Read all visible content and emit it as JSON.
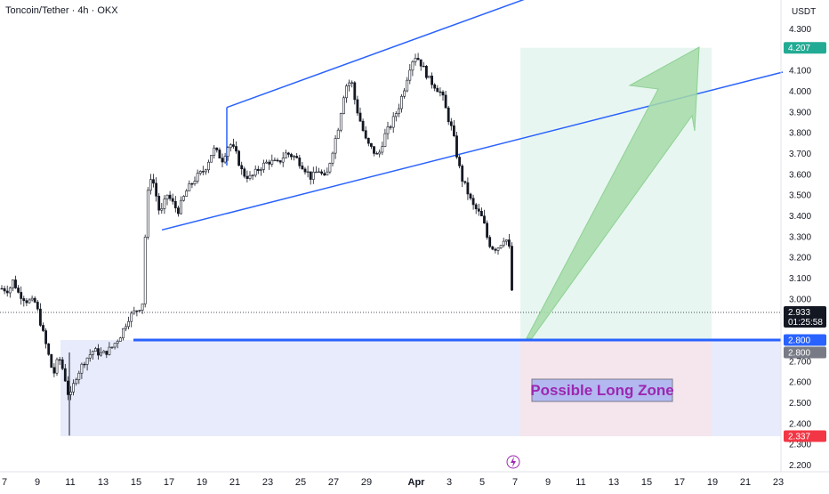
{
  "chart_data": {
    "type": "candlestick",
    "title": "Toncoin/Tether · 4h · OKX",
    "currency": "USDT",
    "y_range": [
      2.18,
      4.55
    ],
    "y_ticks": [
      "4.300",
      "4.100",
      "4.000",
      "3.900",
      "3.800",
      "3.700",
      "3.600",
      "3.500",
      "3.400",
      "3.300",
      "3.200",
      "3.100",
      "3.000",
      "2.700",
      "2.600",
      "2.500",
      "2.400",
      "2.300",
      "2.200"
    ],
    "x_ticks": [
      "7",
      "9",
      "11",
      "13",
      "15",
      "17",
      "19",
      "21",
      "23",
      "25",
      "27",
      "29",
      "Apr",
      "3",
      "5",
      "7",
      "9",
      "11",
      "13",
      "15",
      "17",
      "19",
      "21",
      "23"
    ],
    "price_path": [
      [
        0,
        3.05
      ],
      [
        10,
        3.04
      ],
      [
        15,
        3.09
      ],
      [
        20,
        3.03
      ],
      [
        30,
        2.99
      ],
      [
        40,
        2.98
      ],
      [
        48,
        2.84
      ],
      [
        55,
        2.72
      ],
      [
        60,
        2.63
      ],
      [
        66,
        2.72
      ],
      [
        72,
        2.64
      ],
      [
        78,
        2.51
      ],
      [
        85,
        2.62
      ],
      [
        95,
        2.7
      ],
      [
        105,
        2.75
      ],
      [
        115,
        2.73
      ],
      [
        125,
        2.76
      ],
      [
        135,
        2.82
      ],
      [
        145,
        2.91
      ],
      [
        155,
        2.95
      ],
      [
        160,
        2.97
      ],
      [
        164,
        3.38
      ],
      [
        168,
        3.6
      ],
      [
        173,
        3.55
      ],
      [
        180,
        3.4
      ],
      [
        188,
        3.5
      ],
      [
        200,
        3.42
      ],
      [
        210,
        3.52
      ],
      [
        220,
        3.58
      ],
      [
        230,
        3.62
      ],
      [
        240,
        3.72
      ],
      [
        250,
        3.67
      ],
      [
        258,
        3.75
      ],
      [
        265,
        3.7
      ],
      [
        273,
        3.6
      ],
      [
        282,
        3.58
      ],
      [
        292,
        3.63
      ],
      [
        302,
        3.66
      ],
      [
        312,
        3.65
      ],
      [
        322,
        3.7
      ],
      [
        332,
        3.68
      ],
      [
        342,
        3.63
      ],
      [
        350,
        3.58
      ],
      [
        358,
        3.62
      ],
      [
        366,
        3.57
      ],
      [
        372,
        3.68
      ],
      [
        380,
        3.82
      ],
      [
        388,
        4.02
      ],
      [
        395,
        4.05
      ],
      [
        400,
        3.93
      ],
      [
        406,
        3.84
      ],
      [
        412,
        3.75
      ],
      [
        418,
        3.72
      ],
      [
        425,
        3.68
      ],
      [
        432,
        3.78
      ],
      [
        440,
        3.84
      ],
      [
        448,
        3.92
      ],
      [
        455,
        4.02
      ],
      [
        461,
        4.12
      ],
      [
        466,
        4.17
      ],
      [
        471,
        4.15
      ],
      [
        477,
        4.1
      ],
      [
        483,
        4.05
      ],
      [
        490,
        4.02
      ],
      [
        497,
        3.98
      ],
      [
        503,
        3.88
      ],
      [
        509,
        3.8
      ],
      [
        514,
        3.68
      ],
      [
        519,
        3.58
      ],
      [
        525,
        3.52
      ],
      [
        531,
        3.45
      ],
      [
        537,
        3.42
      ],
      [
        543,
        3.38
      ],
      [
        549,
        3.27
      ],
      [
        555,
        3.24
      ],
      [
        561,
        3.25
      ],
      [
        566,
        3.29
      ],
      [
        570,
        3.28
      ],
      [
        573,
        3.23
      ],
      [
        574,
        3.1
      ],
      [
        576,
        3.02
      ],
      [
        578,
        2.94
      ]
    ],
    "current_price": "2.933",
    "countdown": "01:25:58",
    "support_level": "2.800",
    "target_price": "4.207",
    "stop_price": "2.337",
    "annotation": "Possible Long Zone",
    "channel_upper": [
      [
        255,
        3.92
      ],
      [
        660,
        4.55
      ]
    ],
    "channel_lower": [
      [
        182,
        3.33
      ],
      [
        880,
        4.09
      ]
    ],
    "flag_segment": [
      [
        255,
        3.92
      ],
      [
        255,
        3.64
      ]
    ],
    "support_box": {
      "x_from": 68,
      "y_top": 2.8,
      "y_bottom": 2.337
    },
    "long_position": {
      "x_from": 585,
      "x_to": 800,
      "entry": 2.8,
      "target": 4.207,
      "stop": 2.337
    },
    "colors": {
      "up": "#ffffff",
      "down": "#131722",
      "channel": "#2962ff",
      "support": "#2962ff",
      "target_badge": "#22ab94",
      "stop_badge": "#f23645",
      "price_badge": "#131722",
      "level_badge": "#787b86",
      "profit_zone": "#e8f6f1",
      "loss_zone": "#f7e4ea",
      "support_zone": "#e8ebfb",
      "arrow": "#a5dba8",
      "zone_text": "#9c27b0",
      "zone_box": "#b3b9f0"
    }
  }
}
